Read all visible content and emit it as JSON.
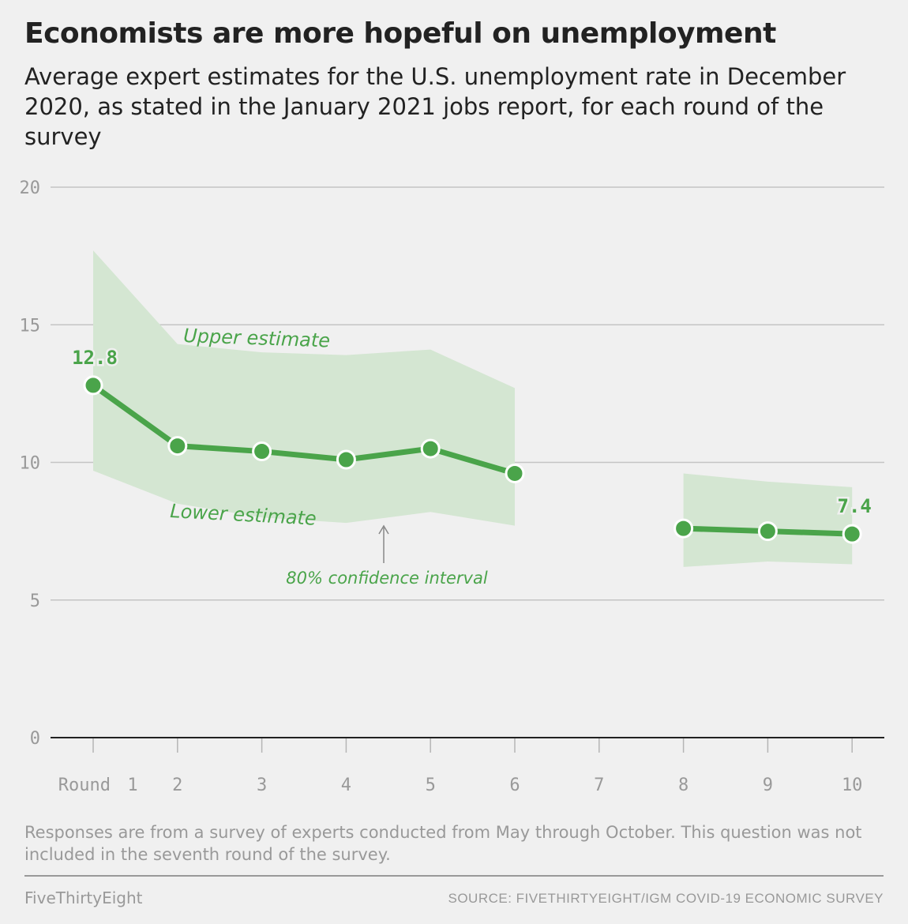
{
  "title": "Economists are more hopeful on unemployment",
  "subtitle": "Average expert estimates for the U.S. unemployment rate in December 2020, as stated in the January 2021 jobs report, for each round of the survey",
  "note": "Responses are from a survey of experts conducted from May through October. This question was not included in the seventh round of the survey.",
  "brand": "FiveThirtyEight",
  "source": "SOURCE: FIVETHIRTYEIGHT/IGM COVID-19 ECONOMIC SURVEY",
  "chart_data": {
    "type": "line",
    "x": [
      "Round 1",
      "2",
      "3",
      "4",
      "5",
      "6",
      "7",
      "8",
      "9",
      "10"
    ],
    "ylim": [
      0,
      20
    ],
    "yticks": [
      "0",
      "5",
      "10",
      "15",
      "20"
    ],
    "grid": true,
    "series": [
      {
        "values": [
          12.8,
          10.6,
          10.4,
          10.1,
          10.5,
          9.6,
          null,
          7.6,
          7.5,
          7.4
        ]
      }
    ],
    "interval": {
      "upper": [
        17.7,
        14.3,
        14.0,
        13.9,
        14.1,
        12.7,
        null,
        9.6,
        9.3,
        9.1
      ],
      "lower": [
        9.7,
        8.5,
        8.0,
        7.8,
        8.2,
        7.7,
        null,
        6.2,
        6.4,
        6.3
      ]
    },
    "data_labels": [
      {
        "index": 0,
        "text": "12.8"
      },
      {
        "index": 9,
        "text": "7.4"
      }
    ],
    "annotations": {
      "upper": "Upper estimate",
      "lower": "Lower estimate",
      "interval": "80% confidence interval"
    },
    "colors": {
      "line": "#4aa44a",
      "band": "#d4e6d2",
      "grid": "#c4c4c4",
      "axis": "#222222"
    }
  }
}
